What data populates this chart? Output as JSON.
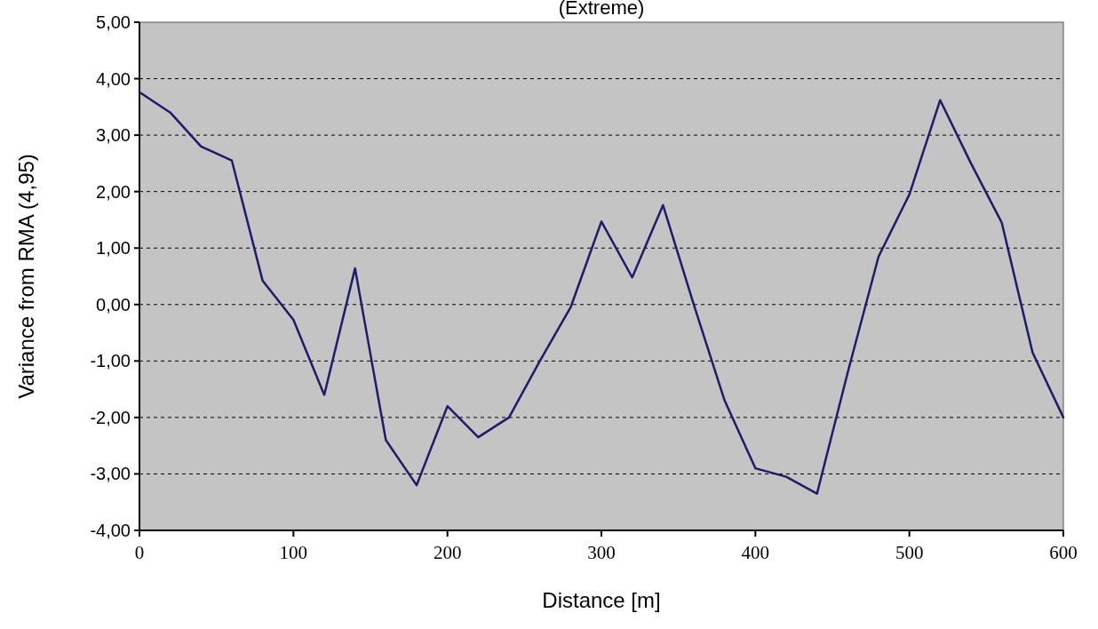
{
  "chart_data": {
    "type": "line",
    "title": "(Extreme)",
    "xlabel": "Distance [m]",
    "ylabel": "Variance from RMA (4,95)",
    "x": [
      0,
      20,
      40,
      60,
      80,
      100,
      120,
      140,
      160,
      180,
      200,
      220,
      240,
      260,
      280,
      300,
      320,
      340,
      360,
      380,
      400,
      420,
      440,
      460,
      480,
      500,
      520,
      540,
      560,
      580,
      600
    ],
    "series": [
      {
        "color": "#1c1c6a",
        "values": [
          3.76,
          3.4,
          2.8,
          2.55,
          0.42,
          -0.27,
          -1.6,
          0.64,
          -2.4,
          -3.2,
          -1.8,
          -2.35,
          -2.0,
          -1.0,
          -0.05,
          1.47,
          0.48,
          1.76,
          0.0,
          -1.7,
          -2.9,
          -3.05,
          -3.35,
          -1.2,
          0.85,
          1.95,
          3.62,
          2.5,
          1.45,
          -0.85,
          -2.0
        ]
      }
    ],
    "xlim": [
      0,
      600
    ],
    "xticks": [
      0,
      100,
      200,
      300,
      400,
      500,
      600
    ],
    "ylim": [
      -4,
      5
    ],
    "yticks": [
      {
        "value": -4,
        "label": "-4,00"
      },
      {
        "value": -3,
        "label": "-3,00"
      },
      {
        "value": -2,
        "label": "-2,00"
      },
      {
        "value": -1,
        "label": "-1,00"
      },
      {
        "value": 0,
        "label": "0,00"
      },
      {
        "value": 1,
        "label": "1,00"
      },
      {
        "value": 2,
        "label": "2,00"
      },
      {
        "value": 3,
        "label": "3,00"
      },
      {
        "value": 4,
        "label": "4,00"
      },
      {
        "value": 5,
        "label": "5,00"
      }
    ],
    "grid": "y",
    "line_style": "solid",
    "marker": "none"
  }
}
